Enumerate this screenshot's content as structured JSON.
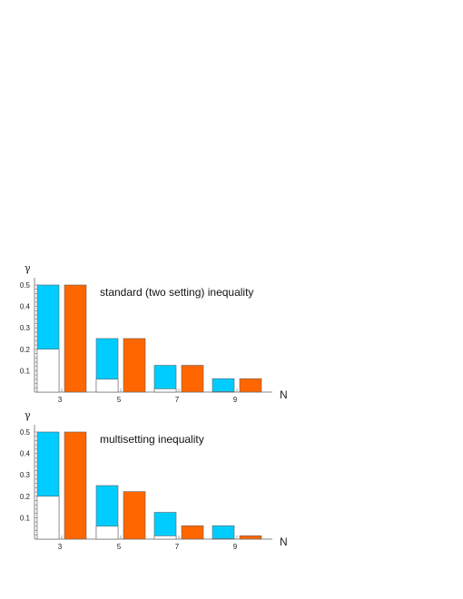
{
  "chart_data": [
    {
      "type": "bar",
      "annotation": "standard (two setting) inequality",
      "ylabel": "γ",
      "xlabel": "N",
      "categories": [
        "3",
        "5",
        "7",
        "9"
      ],
      "yticks": [
        "0.1",
        "0.2",
        "0.3",
        "0.4",
        "0.5"
      ],
      "ylim": [
        0,
        0.5
      ],
      "grid": false,
      "series": [
        {
          "color": "#00ccff",
          "values": [
            0.5,
            0.25,
            0.125,
            0.0625
          ]
        },
        {
          "color": "#ffffff",
          "values": [
            0.2,
            0.06,
            0.015,
            0.002
          ]
        },
        {
          "color": "#ff6600",
          "values": [
            0.5,
            0.25,
            0.125,
            0.0625
          ]
        }
      ]
    },
    {
      "type": "bar",
      "annotation": "multisetting inequality",
      "ylabel": "γ",
      "xlabel": "N",
      "categories": [
        "3",
        "5",
        "7",
        "9"
      ],
      "yticks": [
        "0.1",
        "0.2",
        "0.3",
        "0.4",
        "0.5"
      ],
      "ylim": [
        0,
        0.5
      ],
      "grid": false,
      "series": [
        {
          "color": "#00ccff",
          "values": [
            0.5,
            0.25,
            0.125,
            0.0625
          ]
        },
        {
          "color": "#ffffff",
          "values": [
            0.2,
            0.06,
            0.015,
            0.002
          ]
        },
        {
          "color": "#ff6600",
          "values": [
            0.5,
            0.222,
            0.0625,
            0.0156
          ]
        }
      ]
    }
  ]
}
